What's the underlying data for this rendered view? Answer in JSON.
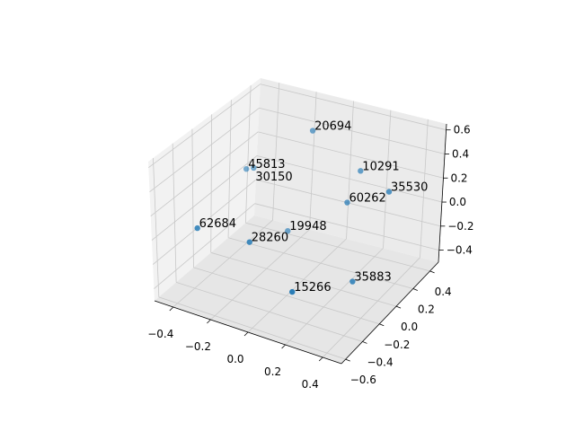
{
  "chart_data": {
    "type": "scatter",
    "projection": "3d",
    "title": "",
    "xlabel": "",
    "ylabel": "",
    "zlabel": "",
    "xlim": [
      -0.5,
      0.5
    ],
    "ylim": [
      -0.65,
      0.5
    ],
    "zlim": [
      -0.5,
      0.65
    ],
    "grid": true,
    "marker_color": "#1f77b4",
    "xticks": [
      "−0.4",
      "−0.2",
      "0.0",
      "0.2",
      "0.4"
    ],
    "xtick_values": [
      -0.4,
      -0.2,
      0.0,
      0.2,
      0.4
    ],
    "yticks": [
      "−0.6",
      "−0.4",
      "−0.2",
      "0.0",
      "0.2",
      "0.4"
    ],
    "ytick_values": [
      -0.6,
      -0.4,
      -0.2,
      0.0,
      0.2,
      0.4
    ],
    "zticks": [
      "−0.4",
      "−0.2",
      "0.0",
      "0.2",
      "0.4",
      "0.6"
    ],
    "ztick_values": [
      -0.4,
      -0.2,
      0.0,
      0.2,
      0.4,
      0.6
    ],
    "points": [
      {
        "label": "20694",
        "x": -0.05,
        "y": 0.3,
        "z": 0.45
      },
      {
        "label": "45813",
        "x": -0.47,
        "y": 0.4,
        "z": -0.16
      },
      {
        "label": "30150",
        "x": -0.43,
        "y": 0.4,
        "z": -0.13
      },
      {
        "label": "10291",
        "x": 0.25,
        "y": 0.2,
        "z": 0.35
      },
      {
        "label": "35530",
        "x": 0.5,
        "y": 0.0,
        "z": 0.46
      },
      {
        "label": "60262",
        "x": 0.22,
        "y": 0.1,
        "z": 0.15
      },
      {
        "label": "62684",
        "x": -0.45,
        "y": -0.2,
        "z": -0.18
      },
      {
        "label": "19948",
        "x": -0.21,
        "y": 0.3,
        "z": -0.46
      },
      {
        "label": "28260",
        "x": -0.17,
        "y": -0.2,
        "z": -0.15
      },
      {
        "label": "15266",
        "x": 0.2,
        "y": -0.5,
        "z": -0.14
      },
      {
        "label": "35883",
        "x": 0.38,
        "y": -0.2,
        "z": -0.19
      }
    ]
  }
}
